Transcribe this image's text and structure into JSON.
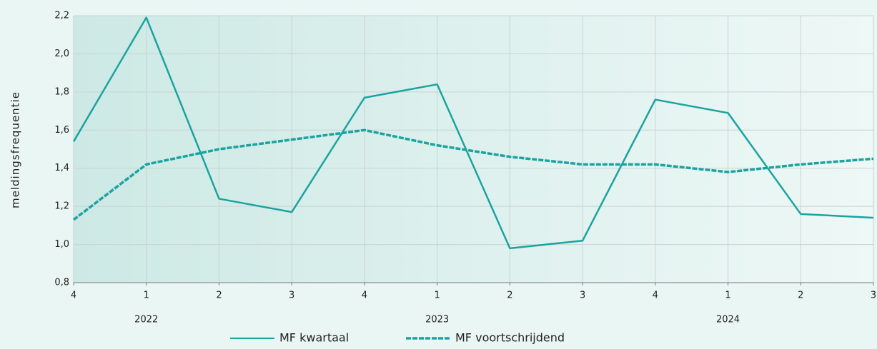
{
  "chart_data": {
    "type": "line",
    "y_label": "meldingsfrequentie",
    "categories": [
      "4",
      "1",
      "2",
      "3",
      "4",
      "1",
      "2",
      "3",
      "4",
      "1",
      "2",
      "3"
    ],
    "years": [
      null,
      "2022",
      null,
      null,
      null,
      "2023",
      null,
      null,
      null,
      "2024",
      null,
      null
    ],
    "series": [
      {
        "name": "MF kwartaal",
        "color": "#1ba3a0",
        "dash": false,
        "values": [
          1.54,
          2.19,
          1.24,
          1.17,
          1.77,
          1.84,
          0.98,
          1.02,
          1.76,
          1.69,
          1.16,
          1.14
        ]
      },
      {
        "name": "MF voortschrijdend",
        "color": "#1ba3a0",
        "dash": true,
        "values": [
          1.13,
          1.42,
          1.5,
          1.55,
          1.6,
          1.52,
          1.46,
          1.42,
          1.42,
          1.38,
          1.42,
          1.45
        ]
      }
    ],
    "ylim": [
      0.8,
      2.2
    ],
    "yticks": [
      {
        "value": 0.8,
        "label": "0,8"
      },
      {
        "value": 1.0,
        "label": "1,0"
      },
      {
        "value": 1.2,
        "label": "1,2"
      },
      {
        "value": 1.4,
        "label": "1,4"
      },
      {
        "value": 1.6,
        "label": "1,6"
      },
      {
        "value": 1.8,
        "label": "1,8"
      },
      {
        "value": 2.0,
        "label": "2,0"
      },
      {
        "value": 2.2,
        "label": "2,2"
      }
    ],
    "grid": true,
    "legend": "bottom"
  }
}
